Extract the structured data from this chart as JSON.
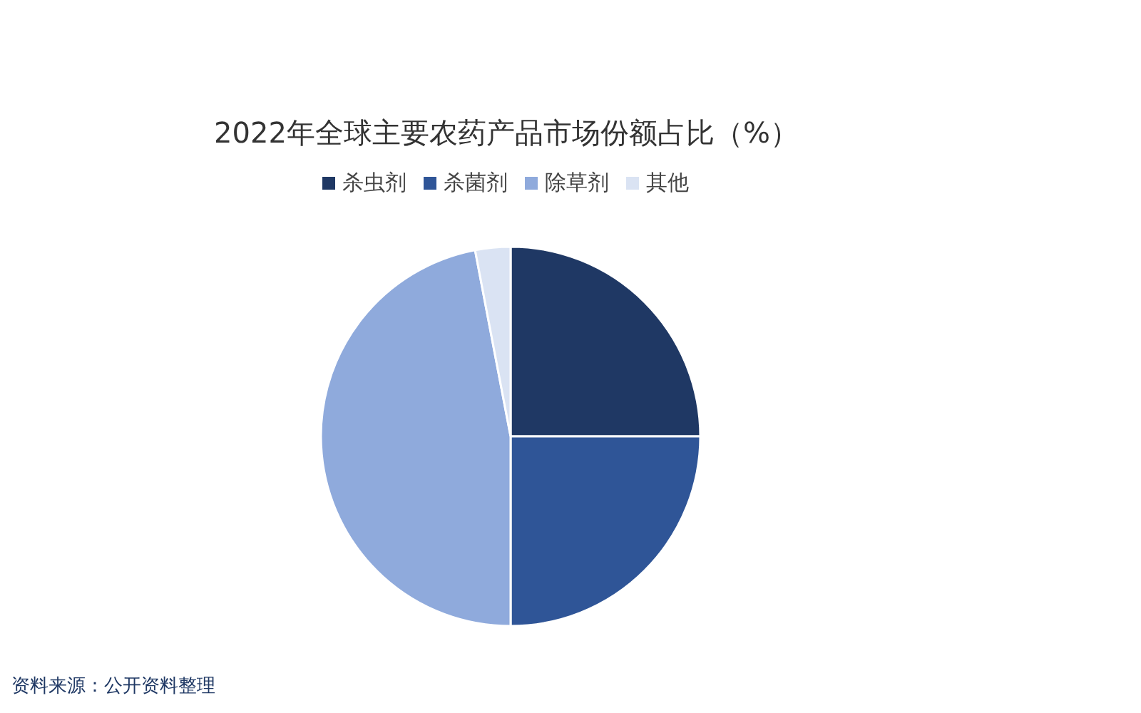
{
  "chart_data": {
    "type": "pie",
    "title": "2022年全球主要农药产品市场份额占比（%）",
    "categories": [
      "杀虫剂",
      "杀菌剂",
      "除草剂",
      "其他"
    ],
    "values": [
      25,
      25,
      47,
      3
    ],
    "colors": [
      "#1f3864",
      "#2f5597",
      "#8faadc",
      "#dae3f3"
    ],
    "legend": "top",
    "annotations": [
      "资料来源：公开资料整理"
    ]
  }
}
